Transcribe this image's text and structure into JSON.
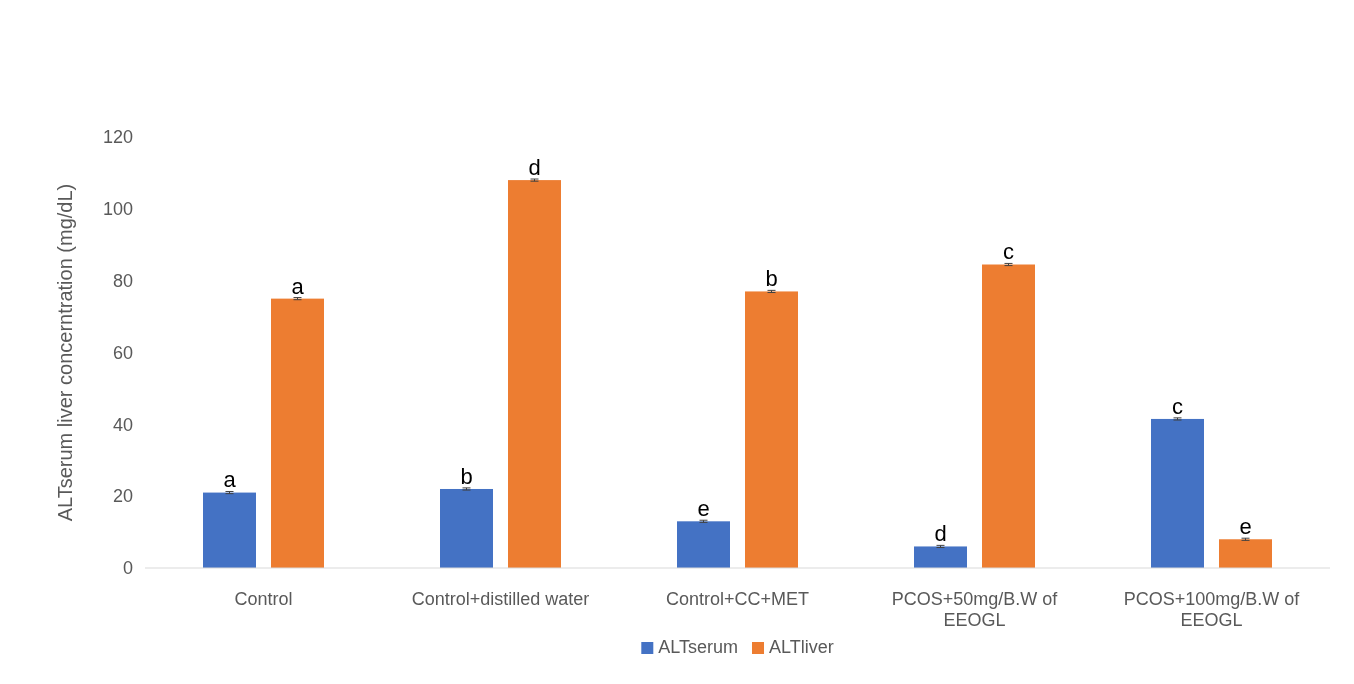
{
  "chart_data": {
    "type": "bar",
    "ylabel": "ALTserum liver concerntration (mg/dL)",
    "categories": [
      "Control",
      "Control+distilled water",
      "Control+CC+MET",
      "PCOS+50mg/B.W of EEOGL",
      "PCOS+100mg/B.W of EEOGL"
    ],
    "series": [
      {
        "name": "ALTserum",
        "color": "#4472c4",
        "values": [
          21,
          22,
          13,
          6,
          41.5
        ],
        "value_labels": [
          "a",
          "b",
          "e",
          "d",
          "c"
        ],
        "errors": [
          0.3,
          0.3,
          0.3,
          0.3,
          0.3
        ]
      },
      {
        "name": "ALTliver",
        "color": "#ed7d31",
        "values": [
          75,
          108,
          77,
          84.5,
          8
        ],
        "value_labels": [
          "a",
          "d",
          "b",
          "c",
          "e"
        ],
        "errors": [
          0.3,
          0.3,
          0.3,
          0.3,
          0.3
        ]
      }
    ],
    "ylim": [
      0,
      120
    ],
    "yticks": [
      0,
      20,
      40,
      60,
      80,
      100,
      120
    ],
    "grid": false,
    "legend": "bottom"
  }
}
